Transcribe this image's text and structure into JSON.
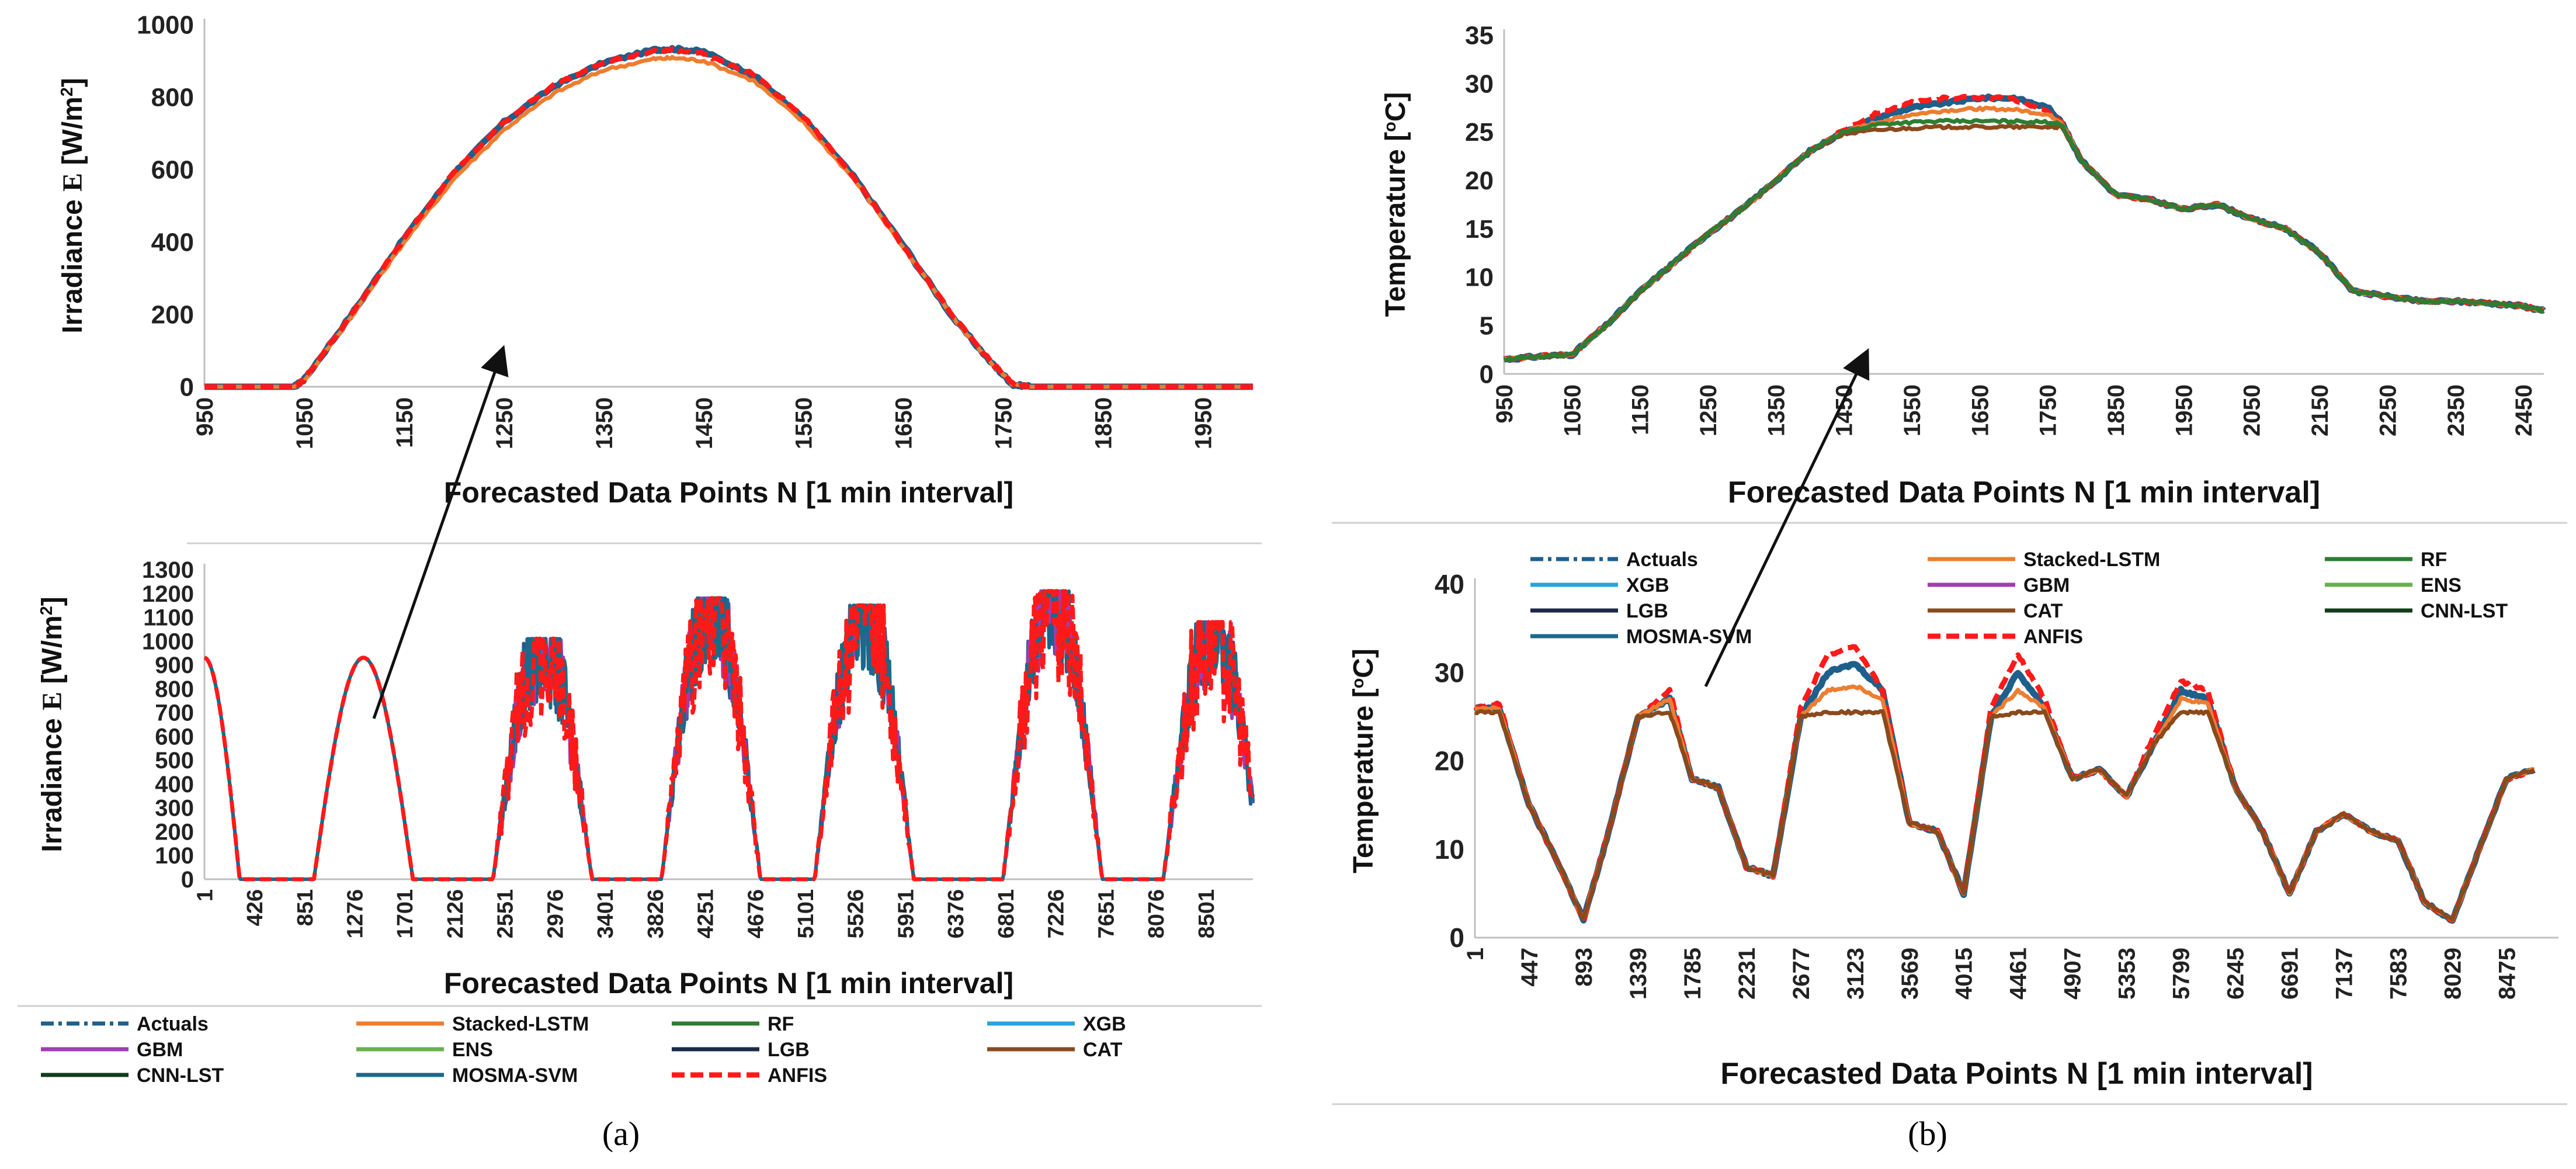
{
  "figure": {
    "panel_labels": {
      "a": "(a)",
      "b": "(b)"
    },
    "colors": {
      "Actuals": "#1f5f8b",
      "Stacked-LSTM": "#ed7d31",
      "RF": "#2e7d32",
      "XGB": "#29a3d9",
      "GBM": "#a03cb4",
      "ENS": "#6ab04c",
      "LGB": "#1b2a4a",
      "CAT": "#8b4a1c",
      "CNN-LST": "#123d1a",
      "MOSMA-SVM": "#1a6a8a",
      "ANFIS": "#ff1a1a"
    }
  },
  "chart_data": [
    {
      "id": "a-top",
      "type": "line",
      "title": "",
      "xlabel": "Forecasted Data Points N [1 min interval]",
      "ylabel": "Irradiance ",
      "ylabel_symbol": "E",
      "ylabel_unit": " [W/m",
      "ylabel_sup": "2",
      "ylabel_end": "]",
      "x_ticks": [
        "950",
        "1050",
        "1150",
        "1250",
        "1350",
        "1450",
        "1550",
        "1650",
        "1750",
        "1850",
        "1950"
      ],
      "y_ticks": [
        "0",
        "200",
        "400",
        "600",
        "800",
        "1000"
      ],
      "xlim": [
        950,
        2000
      ],
      "ylim": [
        0,
        1000
      ],
      "grid": false,
      "x": [
        950,
        1040,
        1050,
        1100,
        1150,
        1200,
        1250,
        1300,
        1350,
        1400,
        1420,
        1450,
        1500,
        1550,
        1600,
        1650,
        1700,
        1740,
        1760,
        1780,
        2000
      ],
      "series": [
        {
          "name": "Actuals",
          "values": [
            0,
            0,
            20,
            210,
            410,
            590,
            730,
            830,
            895,
            930,
            933,
            925,
            860,
            740,
            580,
            390,
            190,
            60,
            5,
            0,
            0
          ]
        },
        {
          "name": "Stacked-LSTM",
          "values": [
            0,
            0,
            18,
            205,
            400,
            575,
            710,
            810,
            875,
            905,
            908,
            900,
            845,
            730,
            575,
            385,
            190,
            60,
            5,
            0,
            0
          ]
        },
        {
          "name": "ANFIS",
          "values": [
            0,
            0,
            20,
            212,
            410,
            592,
            732,
            832,
            898,
            925,
            930,
            920,
            862,
            745,
            582,
            388,
            192,
            62,
            6,
            0,
            0
          ]
        }
      ]
    },
    {
      "id": "a-bottom",
      "type": "line",
      "title": "",
      "xlabel": "Forecasted Data Points N [1 min interval]",
      "ylabel": "Irradiance ",
      "ylabel_symbol": "E",
      "ylabel_unit": " [W/m",
      "ylabel_sup": "2",
      "ylabel_end": "]",
      "x_ticks": [
        "1",
        "426",
        "851",
        "1276",
        "1701",
        "2126",
        "2551",
        "2976",
        "3401",
        "3826",
        "4251",
        "4676",
        "5101",
        "5526",
        "5951",
        "6376",
        "6801",
        "7226",
        "7651",
        "8076",
        "8501"
      ],
      "y_ticks": [
        "0",
        "100",
        "200",
        "300",
        "400",
        "500",
        "600",
        "700",
        "800",
        "900",
        "1000",
        "1100",
        "1200",
        "1300"
      ],
      "xlim": [
        1,
        8900
      ],
      "ylim": [
        0,
        1300
      ],
      "grid": false,
      "day_peaks": [
        {
          "center": 1350,
          "peak": 930
        },
        {
          "center": 2870,
          "peak": 980
        },
        {
          "center": 4300,
          "peak": 1150
        },
        {
          "center": 5600,
          "peak": 1120
        },
        {
          "center": 7200,
          "peak": 1180
        },
        {
          "center": 8560,
          "peak": 1050
        }
      ],
      "legend": {
        "position": "bottom",
        "entries": [
          "Actuals",
          "Stacked-LSTM",
          "RF",
          "XGB",
          "GBM",
          "ENS",
          "LGB",
          "CAT",
          "CNN-LST",
          "MOSMA-SVM",
          "ANFIS"
        ]
      }
    },
    {
      "id": "b-top",
      "type": "line",
      "title": "",
      "xlabel": "Forecasted Data Points N [1 min interval]",
      "ylabel": "Temperature [",
      "ylabel_sup": "o",
      "ylabel_end": "C]",
      "x_ticks": [
        "950",
        "1050",
        "1150",
        "1250",
        "1350",
        "1450",
        "1550",
        "1650",
        "1750",
        "1850",
        "1950",
        "2050",
        "2150",
        "2250",
        "2350",
        "2450"
      ],
      "y_ticks": [
        "0",
        "5",
        "10",
        "15",
        "20",
        "25",
        "30",
        "35"
      ],
      "xlim": [
        950,
        2480
      ],
      "ylim": [
        0,
        35
      ],
      "grid": false,
      "x": [
        950,
        1000,
        1050,
        1100,
        1150,
        1200,
        1250,
        1300,
        1350,
        1400,
        1450,
        1500,
        1550,
        1600,
        1650,
        1700,
        1750,
        1770,
        1800,
        1850,
        1900,
        1950,
        2000,
        2050,
        2100,
        2150,
        2200,
        2250,
        2300,
        2350,
        2400,
        2450,
        2480
      ],
      "series": [
        {
          "name": "Actuals",
          "values": [
            1.5,
            1.8,
            2.0,
            5.0,
            8.5,
            11.5,
            14.5,
            17.0,
            20.0,
            23.0,
            25.0,
            26.5,
            27.5,
            28.0,
            28.5,
            28.5,
            27.5,
            26.0,
            22.0,
            18.5,
            18.0,
            17.0,
            17.5,
            16.0,
            15.0,
            12.5,
            8.5,
            8.0,
            7.5,
            7.5,
            7.3,
            7.0,
            6.5
          ]
        },
        {
          "name": "ANFIS",
          "values": [
            1.5,
            1.8,
            2.0,
            5.0,
            8.5,
            11.5,
            14.5,
            17.0,
            20.0,
            23.0,
            25.2,
            27.0,
            28.0,
            28.5,
            28.6,
            28.4,
            27.0,
            26.0,
            22.0,
            18.5,
            18.0,
            17.0,
            17.5,
            16.0,
            15.0,
            12.5,
            8.5,
            8.0,
            7.5,
            7.5,
            7.3,
            7.0,
            6.5
          ]
        },
        {
          "name": "Stacked-LSTM",
          "values": [
            1.5,
            1.8,
            2.0,
            5.0,
            8.5,
            11.5,
            14.5,
            17.0,
            20.0,
            23.0,
            25.0,
            26.0,
            26.8,
            27.2,
            27.4,
            27.3,
            26.8,
            26.0,
            22.0,
            18.5,
            18.0,
            17.0,
            17.5,
            16.0,
            15.0,
            12.5,
            8.5,
            8.0,
            7.5,
            7.5,
            7.3,
            7.0,
            6.5
          ]
        },
        {
          "name": "CAT",
          "values": [
            1.5,
            1.8,
            2.0,
            5.0,
            8.5,
            11.5,
            14.5,
            17.0,
            20.0,
            23.0,
            24.8,
            25.2,
            25.4,
            25.5,
            25.5,
            25.5,
            25.5,
            25.5,
            22.0,
            18.5,
            18.0,
            17.0,
            17.5,
            16.0,
            15.0,
            12.5,
            8.5,
            8.0,
            7.5,
            7.5,
            7.3,
            7.0,
            6.5
          ]
        },
        {
          "name": "RF",
          "values": [
            1.5,
            1.8,
            2.0,
            5.0,
            8.5,
            11.5,
            14.5,
            17.0,
            20.0,
            23.0,
            25.0,
            25.8,
            26.0,
            26.1,
            26.1,
            26.1,
            26.0,
            25.8,
            22.0,
            18.5,
            18.0,
            17.0,
            17.5,
            16.0,
            15.0,
            12.5,
            8.5,
            8.0,
            7.5,
            7.5,
            7.3,
            7.0,
            6.5
          ]
        }
      ]
    },
    {
      "id": "b-bottom",
      "type": "line",
      "title": "",
      "xlabel": "Forecasted Data Points N [1 min interval]",
      "ylabel": "Temperature [",
      "ylabel_sup": "o",
      "ylabel_end": "C]",
      "x_ticks": [
        "1",
        "447",
        "893",
        "1339",
        "1785",
        "2231",
        "2677",
        "3123",
        "3569",
        "4015",
        "4461",
        "4907",
        "5353",
        "5799",
        "6245",
        "6691",
        "7137",
        "7583",
        "8029",
        "8475"
      ],
      "y_ticks": [
        "0",
        "10",
        "20",
        "30",
        "40"
      ],
      "xlim": [
        1,
        8900
      ],
      "ylim": [
        0,
        40
      ],
      "grid": false,
      "x": [
        1,
        200,
        447,
        700,
        893,
        1100,
        1339,
        1600,
        1785,
        2000,
        2231,
        2450,
        2677,
        2900,
        3123,
        3350,
        3569,
        3800,
        4015,
        4240,
        4461,
        4680,
        4907,
        5130,
        5353,
        5580,
        5799,
        6020,
        6245,
        6470,
        6691,
        6910,
        7137,
        7360,
        7583,
        7800,
        8029,
        8250,
        8475,
        8700
      ],
      "series": [
        {
          "name": "Actuals",
          "values": [
            26,
            26,
            15,
            8,
            2,
            12,
            25,
            27,
            18,
            17,
            8,
            7,
            25,
            30,
            31,
            28,
            13,
            12,
            5,
            25,
            30,
            26,
            18,
            19,
            16,
            22,
            28,
            27,
            17,
            12,
            5,
            12,
            14,
            12,
            11,
            4,
            2,
            10,
            18,
            19
          ]
        },
        {
          "name": "ANFIS",
          "values": [
            26,
            26.5,
            15,
            8,
            2,
            12,
            25,
            28,
            18,
            17,
            8,
            7,
            26,
            32,
            33,
            28,
            13,
            12,
            5,
            26,
            32,
            27,
            18,
            19,
            16,
            23,
            29,
            28,
            17,
            12,
            5,
            12,
            14,
            12,
            11,
            4,
            2,
            10,
            18,
            19
          ]
        },
        {
          "name": "Stacked-LSTM",
          "values": [
            26,
            26,
            15,
            8,
            2,
            12,
            25,
            27,
            18,
            17,
            8,
            7,
            25,
            28,
            28.5,
            27,
            13,
            12,
            5,
            25,
            28,
            26,
            18,
            19,
            16,
            22,
            27,
            26.5,
            17,
            12,
            5,
            12,
            14,
            12,
            11,
            4,
            2,
            10,
            18,
            19
          ]
        },
        {
          "name": "CAT",
          "values": [
            25.5,
            25.5,
            15,
            8,
            2,
            12,
            25,
            25.5,
            18,
            17,
            8,
            7,
            25,
            25.5,
            25.5,
            25.5,
            13,
            12,
            5,
            25,
            25.5,
            25.5,
            18,
            19,
            16,
            22,
            25.5,
            25.5,
            17,
            12,
            5,
            12,
            14,
            12,
            11,
            4,
            2,
            10,
            18,
            19
          ]
        }
      ],
      "legend": {
        "position": "top-left",
        "entries": [
          "Actuals",
          "Stacked-LSTM",
          "RF",
          "XGB",
          "GBM",
          "ENS",
          "LGB",
          "CAT",
          "CNN-LST",
          "MOSMA-SVM",
          "ANFIS"
        ]
      }
    }
  ]
}
